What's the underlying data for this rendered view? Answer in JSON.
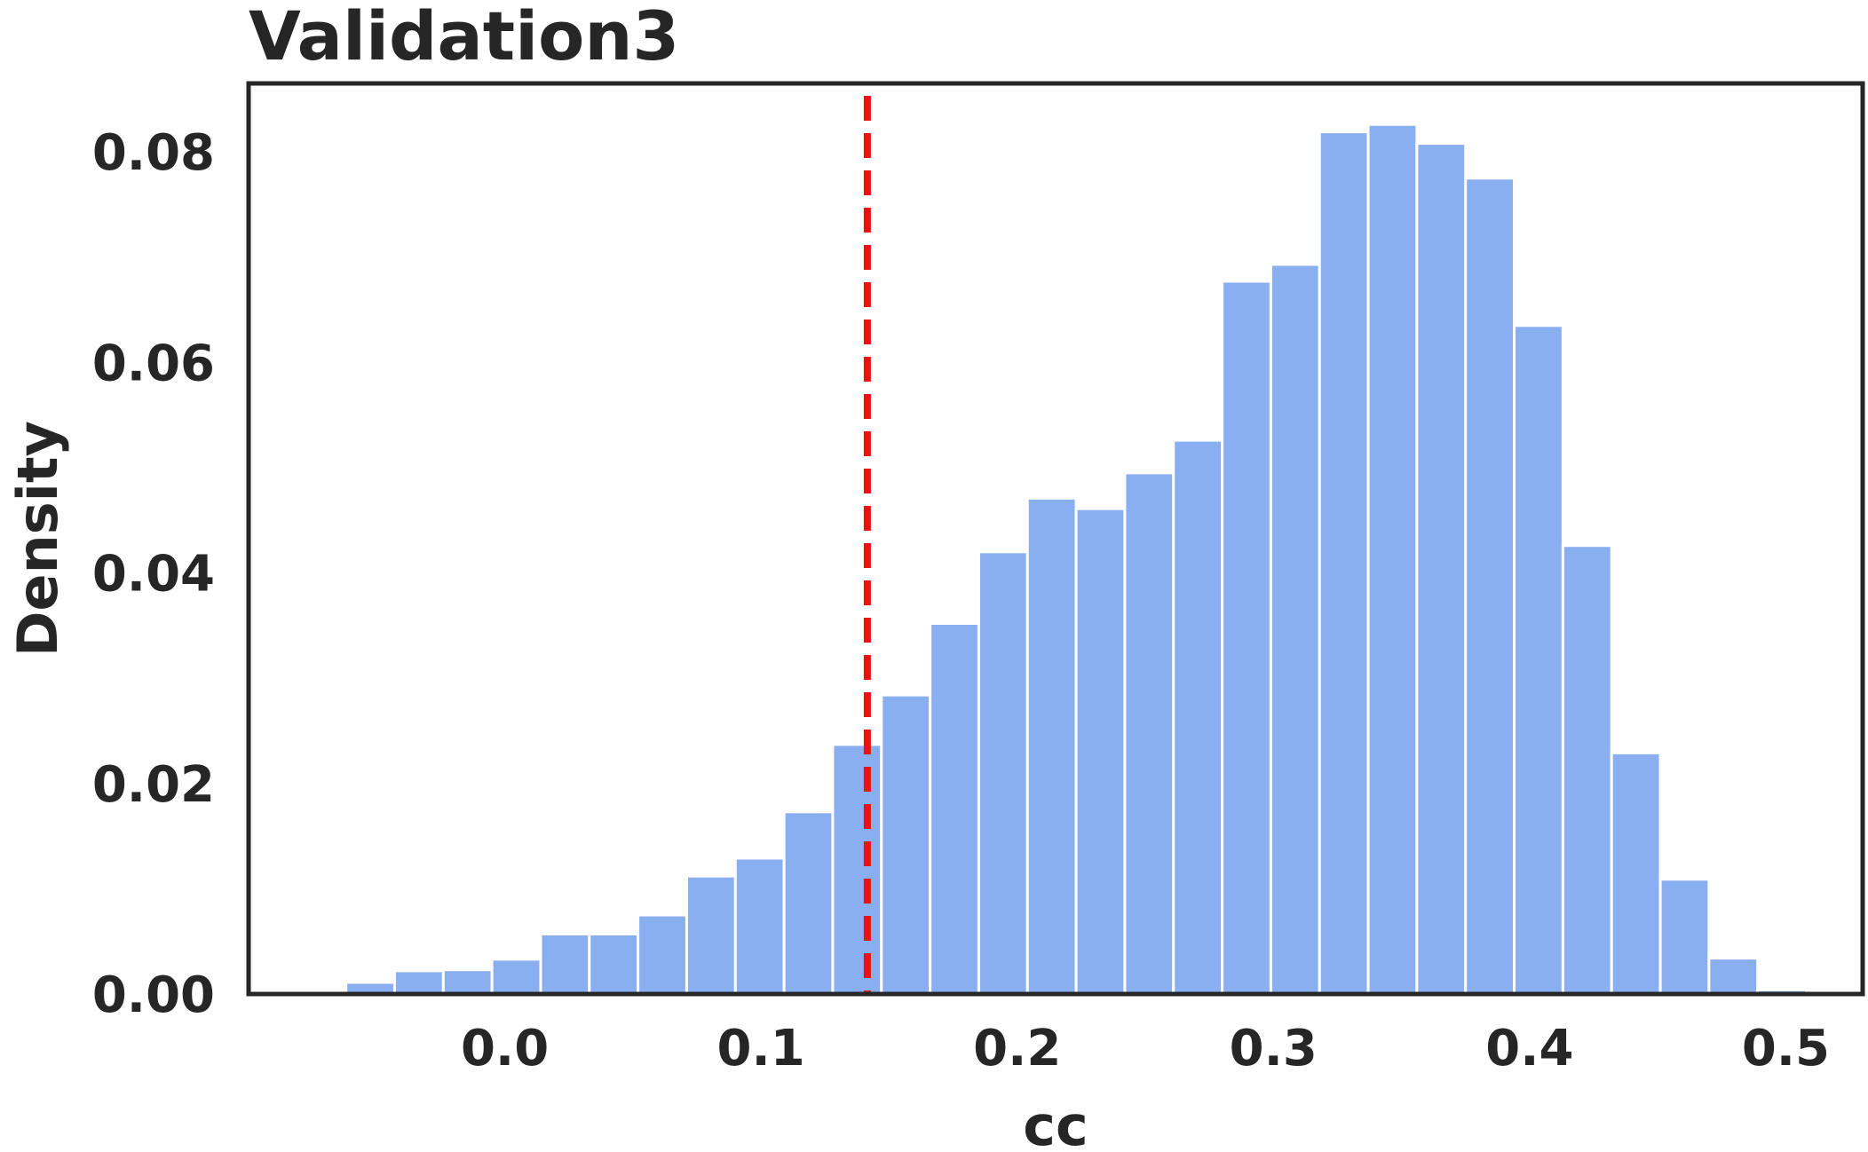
{
  "chart_data": {
    "type": "bar",
    "title": "Validation3",
    "xlabel": "cc",
    "ylabel": "Density",
    "xlim": [
      -0.1,
      0.53
    ],
    "ylim": [
      0,
      0.0865
    ],
    "xticks": [
      "0.0",
      "0.1",
      "0.2",
      "0.3",
      "0.4",
      "0.5"
    ],
    "yticks": [
      "0.00",
      "0.02",
      "0.04",
      "0.06",
      "0.08"
    ],
    "bin_width": 0.019,
    "bins": [
      {
        "x0": -0.062,
        "value": 0.0011
      },
      {
        "x0": -0.043,
        "value": 0.0022
      },
      {
        "x0": -0.024,
        "value": 0.0023
      },
      {
        "x0": -0.005,
        "value": 0.0033
      },
      {
        "x0": 0.014,
        "value": 0.0057
      },
      {
        "x0": 0.033,
        "value": 0.0057
      },
      {
        "x0": 0.052,
        "value": 0.0075
      },
      {
        "x0": 0.071,
        "value": 0.0112
      },
      {
        "x0": 0.09,
        "value": 0.0129
      },
      {
        "x0": 0.109,
        "value": 0.0173
      },
      {
        "x0": 0.128,
        "value": 0.0237
      },
      {
        "x0": 0.147,
        "value": 0.0284
      },
      {
        "x0": 0.166,
        "value": 0.0352
      },
      {
        "x0": 0.185,
        "value": 0.042
      },
      {
        "x0": 0.204,
        "value": 0.0471
      },
      {
        "x0": 0.223,
        "value": 0.0461
      },
      {
        "x0": 0.242,
        "value": 0.0495
      },
      {
        "x0": 0.261,
        "value": 0.0526
      },
      {
        "x0": 0.28,
        "value": 0.0677
      },
      {
        "x0": 0.299,
        "value": 0.0693
      },
      {
        "x0": 0.318,
        "value": 0.0819
      },
      {
        "x0": 0.337,
        "value": 0.0826
      },
      {
        "x0": 0.356,
        "value": 0.0808
      },
      {
        "x0": 0.375,
        "value": 0.0775
      },
      {
        "x0": 0.394,
        "value": 0.0635
      },
      {
        "x0": 0.413,
        "value": 0.0426
      },
      {
        "x0": 0.432,
        "value": 0.0229
      },
      {
        "x0": 0.451,
        "value": 0.0109
      },
      {
        "x0": 0.47,
        "value": 0.0034
      },
      {
        "x0": 0.489,
        "value": 0.0004
      }
    ],
    "threshold_line": {
      "x": 0.1415,
      "style": "dashed",
      "color": "#ee1111"
    },
    "bar_color": "#8aaff0",
    "grid": false,
    "legend": "none"
  }
}
